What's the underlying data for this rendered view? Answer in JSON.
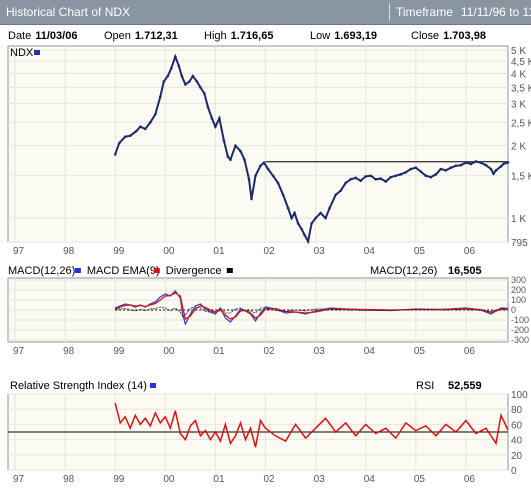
{
  "window": {
    "title": "Historical Chart of NDX",
    "timeframe_label": "Timeframe",
    "timeframe_value": "11/11/96 to 11"
  },
  "info": {
    "date_label": "Date",
    "date_value": "11/03/06",
    "open_label": "Open",
    "open_value": "1.712,31",
    "high_label": "High",
    "high_value": "1.716,65",
    "low_label": "Low",
    "low_value": "1.693,19",
    "close_label": "Close",
    "close_value": "1.703,98"
  },
  "colors": {
    "price": "#1a2a6b",
    "macd": "#3344cc",
    "ema": "#dd1111",
    "rsi": "#dd1111",
    "frame": "#8a95a2",
    "grid": "#e6e6d9"
  },
  "x_axis": {
    "ticks": [
      "97",
      "98",
      "99",
      "00",
      "01",
      "02",
      "03",
      "04",
      "05",
      "06"
    ],
    "start": 1996.86,
    "end": 2006.84
  },
  "chart_data": [
    {
      "type": "line",
      "title": "NDX",
      "y_scale": "log",
      "y_ticks": [
        "5 K",
        "4,5 K",
        "4 K",
        "3,5 K",
        "3 K",
        "2,5 K",
        "2 K",
        "1,5 K",
        "1 K",
        "795"
      ],
      "y_tick_values": [
        5000,
        4500,
        4000,
        3500,
        3000,
        2500,
        2000,
        1500,
        1000,
        795
      ],
      "ylim": [
        795,
        5200
      ],
      "reference_line": 1716,
      "series": [
        {
          "name": "NDX",
          "x": [
            1999.0,
            1999.08,
            1999.2,
            1999.3,
            1999.42,
            1999.5,
            1999.6,
            1999.7,
            1999.8,
            1999.9,
            1999.97,
            2000.05,
            2000.12,
            2000.2,
            2000.27,
            2000.33,
            2000.4,
            2000.48,
            2000.55,
            2000.63,
            2000.7,
            2000.78,
            2000.85,
            2000.93,
            2001.0,
            2001.08,
            2001.17,
            2001.25,
            2001.3,
            2001.4,
            2001.5,
            2001.58,
            2001.67,
            2001.72,
            2001.8,
            2001.9,
            2001.97,
            2002.05,
            2002.15,
            2002.25,
            2002.35,
            2002.45,
            2002.52,
            2002.58,
            2002.65,
            2002.72,
            2002.78,
            2002.85,
            2002.92,
            2003.0,
            2003.1,
            2003.2,
            2003.28,
            2003.4,
            2003.5,
            2003.6,
            2003.7,
            2003.8,
            2003.9,
            2004.0,
            2004.1,
            2004.2,
            2004.3,
            2004.4,
            2004.5,
            2004.6,
            2004.7,
            2004.8,
            2004.9,
            2005.0,
            2005.1,
            2005.2,
            2005.3,
            2005.4,
            2005.5,
            2005.6,
            2005.7,
            2005.8,
            2005.9,
            2006.0,
            2006.1,
            2006.2,
            2006.3,
            2006.4,
            2006.5,
            2006.55,
            2006.6,
            2006.7,
            2006.75,
            2006.84
          ],
          "y": [
            1840,
            2050,
            2180,
            2200,
            2300,
            2400,
            2350,
            2500,
            2700,
            3200,
            3700,
            3900,
            4200,
            4700,
            4300,
            3900,
            3600,
            3700,
            3900,
            3700,
            3500,
            3300,
            2900,
            2600,
            2400,
            2600,
            2100,
            1800,
            1750,
            2000,
            1900,
            1750,
            1450,
            1200,
            1500,
            1650,
            1700,
            1600,
            1500,
            1400,
            1250,
            1100,
            1000,
            1050,
            950,
            900,
            850,
            800,
            950,
            1000,
            1050,
            1000,
            1100,
            1250,
            1300,
            1400,
            1450,
            1470,
            1430,
            1490,
            1500,
            1450,
            1460,
            1420,
            1480,
            1500,
            1520,
            1550,
            1600,
            1620,
            1560,
            1500,
            1480,
            1520,
            1600,
            1580,
            1620,
            1650,
            1660,
            1700,
            1680,
            1720,
            1700,
            1660,
            1600,
            1530,
            1580,
            1640,
            1680,
            1704
          ]
        }
      ]
    },
    {
      "type": "line",
      "title": "MACD",
      "legend": [
        "MACD(12,26)",
        "MACD EMA(9)",
        "Divergence"
      ],
      "readout_label": "MACD(12,26)",
      "readout_value": "16,505",
      "y_ticks": [
        "300",
        "200",
        "100",
        "0",
        "-100",
        "-200",
        "-300"
      ],
      "y_tick_values": [
        300,
        200,
        100,
        0,
        -100,
        -200,
        -300
      ],
      "ylim": [
        -320,
        320
      ],
      "x": [
        1999.0,
        1999.1,
        1999.2,
        1999.3,
        1999.4,
        1999.5,
        1999.6,
        1999.7,
        1999.8,
        1999.9,
        2000.0,
        2000.1,
        2000.2,
        2000.3,
        2000.35,
        2000.4,
        2000.5,
        2000.6,
        2000.7,
        2000.8,
        2000.9,
        2001.0,
        2001.1,
        2001.2,
        2001.3,
        2001.4,
        2001.5,
        2001.6,
        2001.7,
        2001.8,
        2001.9,
        2002.0,
        2002.2,
        2002.4,
        2002.6,
        2002.8,
        2003.0,
        2003.3,
        2003.6,
        2004.0,
        2004.5,
        2005.0,
        2005.5,
        2006.0,
        2006.3,
        2006.5,
        2006.7,
        2006.84
      ],
      "series": [
        {
          "name": "MACD(12,26)",
          "values": [
            20,
            40,
            60,
            50,
            30,
            50,
            30,
            60,
            80,
            130,
            160,
            140,
            190,
            120,
            -50,
            -140,
            -40,
            40,
            60,
            10,
            -20,
            -40,
            20,
            -80,
            -120,
            -60,
            10,
            -10,
            -40,
            -110,
            -30,
            30,
            10,
            -30,
            -20,
            -40,
            -10,
            20,
            10,
            0,
            -5,
            10,
            5,
            20,
            0,
            -40,
            20,
            16.5
          ]
        },
        {
          "name": "MACD EMA(9)",
          "values": [
            10,
            30,
            45,
            50,
            40,
            45,
            35,
            50,
            65,
            100,
            140,
            145,
            170,
            140,
            20,
            -90,
            -60,
            10,
            40,
            25,
            0,
            -25,
            0,
            -50,
            -90,
            -70,
            -10,
            -5,
            -30,
            -80,
            -50,
            10,
            15,
            -15,
            -20,
            -30,
            -20,
            10,
            10,
            5,
            0,
            5,
            5,
            15,
            5,
            -25,
            5,
            10
          ]
        },
        {
          "name": "Divergence",
          "values": [
            10,
            10,
            15,
            0,
            -10,
            5,
            -5,
            10,
            15,
            30,
            20,
            -5,
            20,
            -20,
            -70,
            -50,
            20,
            30,
            20,
            -15,
            -20,
            -15,
            20,
            -30,
            -30,
            10,
            20,
            -5,
            -10,
            -30,
            20,
            20,
            -5,
            -15,
            0,
            -10,
            10,
            10,
            0,
            -5,
            -5,
            5,
            0,
            5,
            -5,
            -15,
            15,
            6.5
          ]
        }
      ]
    },
    {
      "type": "line",
      "title": "Relative Strength Index (14)",
      "readout_label": "RSI",
      "readout_value": "52,559",
      "y_ticks": [
        "100",
        "80",
        "60",
        "40",
        "20",
        "0"
      ],
      "y_tick_values": [
        100,
        80,
        60,
        40,
        20,
        0
      ],
      "ylim": [
        0,
        100
      ],
      "reference_line": 50,
      "series": [
        {
          "name": "RSI",
          "x": [
            1999.0,
            1999.1,
            1999.2,
            1999.3,
            1999.4,
            1999.5,
            1999.6,
            1999.7,
            1999.8,
            1999.9,
            2000.0,
            2000.1,
            2000.2,
            2000.3,
            2000.4,
            2000.5,
            2000.6,
            2000.7,
            2000.8,
            2000.9,
            2001.0,
            2001.1,
            2001.2,
            2001.3,
            2001.4,
            2001.5,
            2001.6,
            2001.7,
            2001.8,
            2001.9,
            2002.0,
            2002.2,
            2002.4,
            2002.6,
            2002.8,
            2003.0,
            2003.2,
            2003.4,
            2003.6,
            2003.8,
            2004.0,
            2004.2,
            2004.4,
            2004.6,
            2004.8,
            2005.0,
            2005.2,
            2005.4,
            2005.6,
            2005.8,
            2006.0,
            2006.2,
            2006.4,
            2006.6,
            2006.7,
            2006.84
          ],
          "values": [
            88,
            62,
            70,
            55,
            72,
            60,
            68,
            58,
            75,
            62,
            70,
            55,
            78,
            48,
            40,
            58,
            65,
            45,
            52,
            40,
            50,
            38,
            60,
            35,
            45,
            62,
            40,
            55,
            30,
            65,
            55,
            45,
            38,
            60,
            42,
            55,
            68,
            50,
            62,
            45,
            60,
            48,
            55,
            42,
            62,
            52,
            58,
            45,
            60,
            50,
            65,
            48,
            55,
            35,
            72,
            52.6
          ]
        }
      ]
    }
  ]
}
